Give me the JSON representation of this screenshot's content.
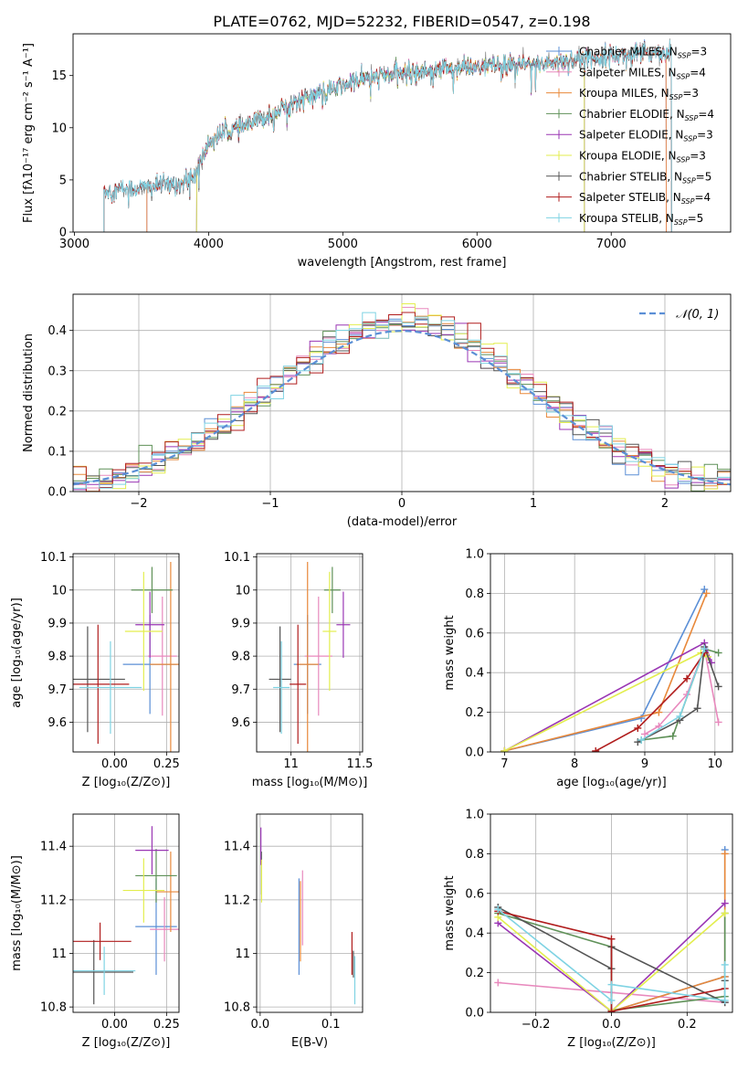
{
  "figure_title": "PLATE=0762, MJD=52232, FIBERID=0547, z=0.198",
  "colors": {
    "Chabrier MILES": "#5b8fd6",
    "Salpeter MILES": "#e889bd",
    "Kroupa MILES": "#e8883a",
    "Chabrier ELODIE": "#5f9158",
    "Salpeter ELODIE": "#9a36b4",
    "Kroupa ELODIE": "#e3ee4e",
    "Chabrier STELIB": "#545454",
    "Salpeter STELIB": "#b01c1c",
    "Kroupa STELIB": "#7fd3e3",
    "normal": "#5b8fd6"
  },
  "chart_data": [
    {
      "id": "spectrum",
      "type": "line",
      "title": "",
      "xlabel": "wavelength [Angstrom, rest frame]",
      "ylabel": "Flux [fλ10⁻¹⁷ erg cm⁻² s⁻¹ A⁻¹]",
      "xlim": [
        2990,
        7890
      ],
      "ylim": [
        0,
        19
      ],
      "xticks": [
        3000,
        4000,
        5000,
        6000,
        7000
      ],
      "yticks": [
        0,
        5,
        10,
        15
      ],
      "grid": false,
      "legend_position": "right",
      "legend": [
        {
          "label": "Chabrier MILES, N_SSP=3",
          "name": "Chabrier MILES"
        },
        {
          "label": "Salpeter MILES, N_SSP=4",
          "name": "Salpeter MILES"
        },
        {
          "label": "Kroupa MILES, N_SSP=3",
          "name": "Kroupa MILES"
        },
        {
          "label": "Chabrier ELODIE, N_SSP=4",
          "name": "Chabrier ELODIE"
        },
        {
          "label": "Salpeter ELODIE, N_SSP=3",
          "name": "Salpeter ELODIE"
        },
        {
          "label": "Kroupa ELODIE, N_SSP=3",
          "name": "Kroupa ELODIE"
        },
        {
          "label": "Chabrier STELIB, N_SSP=5",
          "name": "Chabrier STELIB"
        },
        {
          "label": "Salpeter STELIB, N_SSP=4",
          "name": "Salpeter STELIB"
        },
        {
          "label": "Kroupa STELIB, N_SSP=5",
          "name": "Kroupa STELIB"
        }
      ],
      "continuum": {
        "x": [
          3220,
          3500,
          3650,
          3800,
          3900,
          4000,
          4100,
          4300,
          4500,
          4700,
          4900,
          5100,
          5300,
          5500,
          5700,
          5900,
          6100,
          6300,
          6500,
          6700,
          6900,
          7100,
          7300,
          7450
        ],
        "y": [
          4.0,
          4.2,
          4.5,
          4.6,
          5.5,
          8.5,
          9.5,
          10.2,
          11.5,
          12.8,
          13.5,
          14.5,
          15.0,
          15.3,
          15.6,
          15.7,
          15.9,
          16.0,
          16.2,
          16.5,
          16.8,
          17.0,
          17.2,
          17.3
        ]
      },
      "series_ranges": {
        "Chabrier MILES": [
          3540,
          7410
        ],
        "Salpeter MILES": [
          3540,
          7410
        ],
        "Kroupa MILES": [
          3540,
          7410
        ],
        "Chabrier ELODIE": [
          3910,
          6800
        ],
        "Salpeter ELODIE": [
          3910,
          6800
        ],
        "Kroupa ELODIE": [
          3910,
          6800
        ],
        "Chabrier STELIB": [
          3220,
          7450
        ],
        "Salpeter STELIB": [
          3220,
          7450
        ],
        "Kroupa STELIB": [
          3220,
          7450
        ]
      },
      "data_curve": {
        "x_range": [
          3220,
          7450
        ]
      }
    },
    {
      "id": "residuals",
      "type": "histogram",
      "xlabel": "(data-model)/error",
      "ylabel": "Normed distribution",
      "xlim": [
        -2.5,
        2.5
      ],
      "ylim": [
        0,
        0.49
      ],
      "xticks": [
        -2,
        -1,
        0,
        1,
        2
      ],
      "yticks": [
        0.0,
        0.1,
        0.2,
        0.3,
        0.4
      ],
      "grid": true,
      "legend_position": "top-right",
      "bin_width": 0.1,
      "legend_label": "𝒩(0, 1)",
      "curve": "standard normal pdf"
    },
    {
      "id": "age-vs-Z",
      "type": "scatter",
      "xlabel": "Z [log₁₀(Z/Z⊙)]",
      "ylabel": "age  [log₁₀(age/yr)]",
      "xlim": [
        -0.2,
        0.31
      ],
      "ylim": [
        9.51,
        10.11
      ],
      "xticks": [
        0.0,
        0.25
      ],
      "xticklabels": [
        "0.00",
        "0.25"
      ],
      "yticks": [
        9.6,
        9.7,
        9.8,
        9.9,
        10.0,
        10.1
      ],
      "grid": true,
      "points": [
        {
          "name": "Chabrier MILES",
          "x": 0.17,
          "xerr": 0.13,
          "y": 9.775,
          "yerr": 0.15
        },
        {
          "name": "Salpeter MILES",
          "x": 0.23,
          "xerr": 0.07,
          "y": 9.8,
          "yerr": 0.18
        },
        {
          "name": "Kroupa MILES",
          "x": 0.27,
          "xerr": 0.1,
          "y": 9.775,
          "yerr": 0.31
        },
        {
          "name": "Chabrier ELODIE",
          "x": 0.18,
          "xerr": 0.1,
          "y": 10.0,
          "yerr": 0.07
        },
        {
          "name": "Salpeter ELODIE",
          "x": 0.17,
          "xerr": 0.07,
          "y": 9.895,
          "yerr": 0.1
        },
        {
          "name": "Kroupa ELODIE",
          "x": 0.14,
          "xerr": 0.09,
          "y": 9.875,
          "yerr": 0.18
        },
        {
          "name": "Chabrier STELIB",
          "x": -0.13,
          "xerr": 0.18,
          "y": 9.73,
          "yerr": 0.16
        },
        {
          "name": "Salpeter STELIB",
          "x": -0.08,
          "xerr": 0.15,
          "y": 9.715,
          "yerr": 0.18
        },
        {
          "name": "Kroupa STELIB",
          "x": -0.02,
          "xerr": 0.15,
          "y": 9.705,
          "yerr": 0.14
        }
      ]
    },
    {
      "id": "age-vs-mass",
      "type": "scatter",
      "xlabel": "mass [log₁₀(M/M⊙)]",
      "ylabel": "",
      "xlim": [
        10.75,
        11.52
      ],
      "ylim": [
        9.51,
        10.11
      ],
      "xticks": [
        11.0,
        11.5
      ],
      "yticks": [
        9.6,
        9.7,
        9.8,
        9.9,
        10.0,
        10.1
      ],
      "grid": true,
      "points": [
        {
          "name": "Chabrier MILES",
          "x": 11.12,
          "xerr": 0.1,
          "y": 9.775,
          "yerr": 0.15
        },
        {
          "name": "Salpeter MILES",
          "x": 11.2,
          "xerr": 0.1,
          "y": 9.8,
          "yerr": 0.18
        },
        {
          "name": "Kroupa MILES",
          "x": 11.12,
          "xerr": 0.08,
          "y": 9.775,
          "yerr": 0.31
        },
        {
          "name": "Chabrier ELODIE",
          "x": 11.3,
          "xerr": 0.06,
          "y": 10.0,
          "yerr": 0.07
        },
        {
          "name": "Salpeter ELODIE",
          "x": 11.38,
          "xerr": 0.05,
          "y": 9.895,
          "yerr": 0.1
        },
        {
          "name": "Kroupa ELODIE",
          "x": 11.28,
          "xerr": 0.05,
          "y": 9.875,
          "yerr": 0.18
        },
        {
          "name": "Chabrier STELIB",
          "x": 10.92,
          "xerr": 0.08,
          "y": 9.73,
          "yerr": 0.16
        },
        {
          "name": "Salpeter STELIB",
          "x": 11.05,
          "xerr": 0.06,
          "y": 9.715,
          "yerr": 0.18
        },
        {
          "name": "Kroupa STELIB",
          "x": 10.93,
          "xerr": 0.06,
          "y": 9.705,
          "yerr": 0.14
        }
      ]
    },
    {
      "id": "mass-weight-vs-age",
      "type": "line",
      "xlabel": "age  [log₁₀(age/yr)]",
      "ylabel": "mass weight",
      "xlim": [
        6.8,
        10.25
      ],
      "ylim": [
        0,
        1
      ],
      "xticks": [
        7,
        8,
        9,
        10
      ],
      "yticks": [
        0.0,
        0.2,
        0.4,
        0.6,
        0.8,
        1.0
      ],
      "grid": true,
      "series": [
        {
          "name": "Chabrier MILES",
          "x": [
            7.0,
            8.95,
            9.85
          ],
          "y": [
            0.005,
            0.17,
            0.82
          ]
        },
        {
          "name": "Salpeter MILES",
          "x": [
            9.0,
            9.2,
            9.6,
            9.85,
            10.05
          ],
          "y": [
            0.09,
            0.13,
            0.29,
            0.52,
            0.15
          ]
        },
        {
          "name": "Kroupa MILES",
          "x": [
            7.0,
            9.2,
            9.88
          ],
          "y": [
            0.005,
            0.2,
            0.8
          ]
        },
        {
          "name": "Chabrier ELODIE",
          "x": [
            8.95,
            9.4,
            9.85,
            10.05
          ],
          "y": [
            0.06,
            0.08,
            0.52,
            0.5
          ]
        },
        {
          "name": "Salpeter ELODIE",
          "x": [
            7.0,
            9.85,
            9.95
          ],
          "y": [
            0.005,
            0.55,
            0.45
          ]
        },
        {
          "name": "Kroupa ELODIE",
          "x": [
            7.0,
            9.8,
            9.9
          ],
          "y": [
            0.005,
            0.5,
            0.48
          ]
        },
        {
          "name": "Chabrier STELIB",
          "x": [
            8.9,
            9.5,
            9.75,
            9.85,
            10.05
          ],
          "y": [
            0.05,
            0.16,
            0.22,
            0.53,
            0.33
          ]
        },
        {
          "name": "Salpeter STELIB",
          "x": [
            8.3,
            8.9,
            9.6,
            9.85
          ],
          "y": [
            0.005,
            0.12,
            0.37,
            0.5
          ]
        },
        {
          "name": "Kroupa STELIB",
          "x": [
            8.95,
            9.5,
            9.85
          ],
          "y": [
            0.06,
            0.18,
            0.52
          ]
        }
      ]
    },
    {
      "id": "mass-vs-Z",
      "type": "scatter",
      "xlabel": "Z [log₁₀(Z/Z⊙)]",
      "ylabel": "mass [log₁₀(M/M⊙)]",
      "xlim": [
        -0.2,
        0.31
      ],
      "ylim": [
        10.78,
        11.52
      ],
      "xticks": [
        0.0,
        0.25
      ],
      "xticklabels": [
        "0.00",
        "0.25"
      ],
      "yticks": [
        10.8,
        11.0,
        11.2,
        11.4
      ],
      "grid": true,
      "points": [
        {
          "name": "Chabrier MILES",
          "x": 0.2,
          "xerr": 0.1,
          "y": 11.1,
          "yerr": 0.18
        },
        {
          "name": "Salpeter MILES",
          "x": 0.24,
          "xerr": 0.07,
          "y": 11.09,
          "yerr": 0.12
        },
        {
          "name": "Kroupa MILES",
          "x": 0.27,
          "xerr": 0.07,
          "y": 11.23,
          "yerr": 0.15
        },
        {
          "name": "Chabrier ELODIE",
          "x": 0.2,
          "xerr": 0.1,
          "y": 11.29,
          "yerr": 0.1
        },
        {
          "name": "Salpeter ELODIE",
          "x": 0.18,
          "xerr": 0.08,
          "y": 11.385,
          "yerr": 0.09
        },
        {
          "name": "Kroupa ELODIE",
          "x": 0.14,
          "xerr": 0.1,
          "y": 11.235,
          "yerr": 0.12
        },
        {
          "name": "Chabrier STELIB",
          "x": -0.1,
          "xerr": 0.19,
          "y": 10.93,
          "yerr": 0.12
        },
        {
          "name": "Salpeter STELIB",
          "x": -0.07,
          "xerr": 0.15,
          "y": 11.045,
          "yerr": 0.07
        },
        {
          "name": "Kroupa STELIB",
          "x": -0.05,
          "xerr": 0.15,
          "y": 10.935,
          "yerr": 0.09
        }
      ]
    },
    {
      "id": "mass-vs-EBV",
      "type": "scatter",
      "xlabel": "E(B-V)",
      "ylabel": "",
      "xlim": [
        -0.005,
        0.145
      ],
      "ylim": [
        10.78,
        11.52
      ],
      "xticks": [
        0.0,
        0.1
      ],
      "xticklabels": [
        "0.0",
        "0.1"
      ],
      "yticks": [
        10.8,
        11.0,
        11.2,
        11.4
      ],
      "grid": true,
      "points": [
        {
          "name": "Chabrier MILES",
          "x": 0.055,
          "xerr": 0.0,
          "y": 11.1,
          "yerr": 0.18
        },
        {
          "name": "Salpeter MILES",
          "x": 0.06,
          "xerr": 0.0,
          "y": 11.17,
          "yerr": 0.14
        },
        {
          "name": "Kroupa MILES",
          "x": 0.057,
          "xerr": 0.0,
          "y": 11.12,
          "yerr": 0.15
        },
        {
          "name": "Chabrier ELODIE",
          "x": 0.002,
          "xerr": 0.0,
          "y": 11.3,
          "yerr": 0.08
        },
        {
          "name": "Salpeter ELODIE",
          "x": 0.001,
          "xerr": 0.0,
          "y": 11.4,
          "yerr": 0.07
        },
        {
          "name": "Kroupa ELODIE",
          "x": 0.002,
          "xerr": 0.0,
          "y": 11.27,
          "yerr": 0.08
        },
        {
          "name": "Chabrier STELIB",
          "x": 0.132,
          "xerr": 0.0,
          "y": 10.96,
          "yerr": 0.05
        },
        {
          "name": "Salpeter STELIB",
          "x": 0.13,
          "xerr": 0.0,
          "y": 11.0,
          "yerr": 0.08
        },
        {
          "name": "Kroupa STELIB",
          "x": 0.134,
          "xerr": 0.0,
          "y": 10.9,
          "yerr": 0.09
        }
      ]
    },
    {
      "id": "mass-weight-vs-Z",
      "type": "line",
      "xlabel": "Z [log₁₀(Z/Z⊙)]",
      "ylabel": "mass weight",
      "xlim": [
        -0.32,
        0.32
      ],
      "ylim": [
        0,
        1
      ],
      "xticks": [
        -0.2,
        0.0,
        0.2
      ],
      "xticklabels": [
        "−0.2",
        "0.0",
        "0.2"
      ],
      "yticks": [
        0.0,
        0.2,
        0.4,
        0.6,
        0.8,
        1.0
      ],
      "grid": true,
      "series": [
        {
          "name": "Chabrier MILES",
          "x": [
            0.0,
            0.3,
            0.3
          ],
          "y": [
            0.005,
            0.18,
            0.82
          ]
        },
        {
          "name": "Salpeter MILES",
          "x": [
            -0.3,
            0.0,
            0.3
          ],
          "y": [
            0.15,
            0.1,
            0.05
          ]
        },
        {
          "name": "Kroupa MILES",
          "x": [
            0.0,
            0.3,
            0.3
          ],
          "y": [
            0.005,
            0.18,
            0.8
          ]
        },
        {
          "name": "Chabrier ELODIE",
          "x": [
            -0.3,
            0.0,
            0.0,
            0.3,
            0.3
          ],
          "y": [
            0.5,
            0.33,
            0.01,
            0.08,
            0.5
          ]
        },
        {
          "name": "Salpeter ELODIE",
          "x": [
            -0.3,
            0.0,
            0.3
          ],
          "y": [
            0.45,
            0.005,
            0.55
          ]
        },
        {
          "name": "Kroupa ELODIE",
          "x": [
            -0.3,
            0.0,
            0.3
          ],
          "y": [
            0.48,
            0.005,
            0.5
          ]
        },
        {
          "name": "Chabrier STELIB",
          "x": [
            -0.3,
            0.0,
            0.0,
            0.3,
            0.3
          ],
          "y": [
            0.53,
            0.22,
            0.33,
            0.05,
            0.16
          ]
        },
        {
          "name": "Salpeter STELIB",
          "x": [
            -0.3,
            0.0,
            0.0,
            0.3
          ],
          "y": [
            0.51,
            0.37,
            0.005,
            0.12
          ]
        },
        {
          "name": "Kroupa STELIB",
          "x": [
            -0.3,
            0.0,
            0.0,
            0.3,
            0.3
          ],
          "y": [
            0.52,
            0.06,
            0.14,
            0.06,
            0.24
          ]
        }
      ]
    }
  ]
}
